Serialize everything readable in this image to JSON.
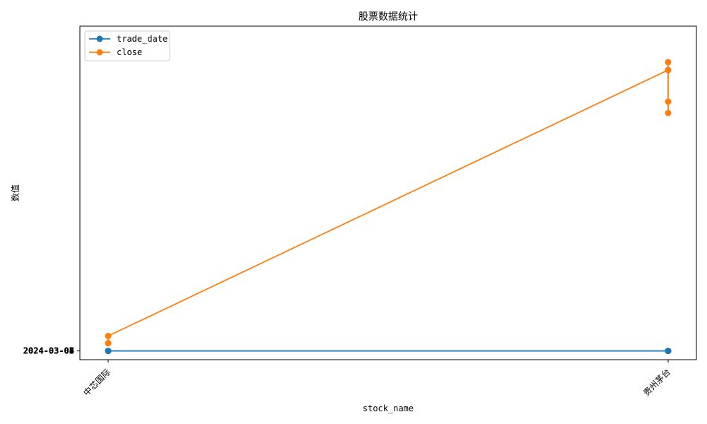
{
  "chart_data": {
    "type": "line",
    "title": "股票数据统计",
    "xlabel": "stock_name",
    "ylabel": "数值",
    "categories": [
      "中芯国际",
      "贵州茅台"
    ],
    "y_tick_labels": [
      "2024-03-03",
      "2024-03-04",
      "2024-03-05",
      "2024-03-06",
      "2024-03-07"
    ],
    "ylim": [
      -50,
      1850
    ],
    "grid": false,
    "legend_position": "top-left",
    "series": [
      {
        "name": "trade_date",
        "color": "#1f77b4",
        "points": [
          {
            "category": "中芯国际",
            "y": 0
          },
          {
            "category": "中芯国际",
            "y": 0
          },
          {
            "category": "中芯国际",
            "y": 0
          },
          {
            "category": "中芯国际",
            "y": 0
          },
          {
            "category": "贵州茅台",
            "y": 0
          },
          {
            "category": "贵州茅台",
            "y": 0
          },
          {
            "category": "贵州茅台",
            "y": 0
          },
          {
            "category": "贵州茅台",
            "y": 0
          }
        ]
      },
      {
        "name": "close",
        "color": "#ff7f0e",
        "points": [
          {
            "category": "中芯国际",
            "y": 45
          },
          {
            "category": "中芯国际",
            "y": 44
          },
          {
            "category": "中芯国际",
            "y": 85
          },
          {
            "category": "贵州茅台",
            "y": 1600
          },
          {
            "category": "贵州茅台",
            "y": 1645
          },
          {
            "category": "贵州茅台",
            "y": 1420
          },
          {
            "category": "贵州茅台",
            "y": 1355
          },
          {
            "category": "贵州茅台",
            "y": 1600
          }
        ]
      }
    ]
  }
}
